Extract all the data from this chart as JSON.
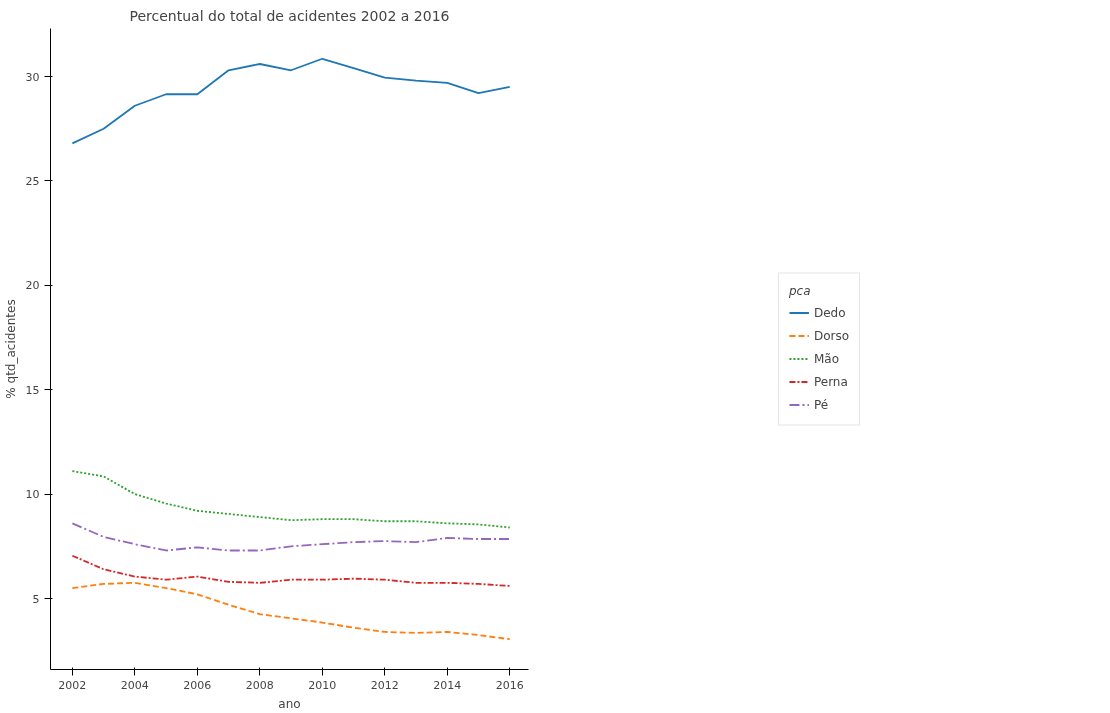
{
  "chart_data": {
    "type": "line",
    "title": "Percentual do total de acidentes 2002 a 2016",
    "xlabel": "ano",
    "ylabel": "% qtd_acidentes",
    "legend_title": "pca",
    "x": [
      2002,
      2003,
      2004,
      2005,
      2006,
      2007,
      2008,
      2009,
      2010,
      2011,
      2012,
      2013,
      2014,
      2015,
      2016
    ],
    "series": [
      {
        "name": "Dedo",
        "color": "#1f77b4",
        "line_style": "solid",
        "values": [
          26.8,
          27.5,
          28.6,
          29.15,
          29.15,
          30.3,
          30.6,
          30.3,
          30.85,
          30.4,
          29.95,
          29.8,
          29.7,
          29.2,
          29.5
        ]
      },
      {
        "name": "Dorso",
        "color": "#ff7f0e",
        "line_style": "dashed",
        "values": [
          5.5,
          5.7,
          5.75,
          5.5,
          5.2,
          4.7,
          4.25,
          4.05,
          3.85,
          3.6,
          3.4,
          3.35,
          3.4,
          3.25,
          3.05
        ]
      },
      {
        "name": "Mão",
        "color": "#2ca02c",
        "line_style": "dotted",
        "values": [
          11.1,
          10.85,
          10.0,
          9.55,
          9.2,
          9.05,
          8.9,
          8.75,
          8.8,
          8.8,
          8.7,
          8.7,
          8.6,
          8.55,
          8.4
        ]
      },
      {
        "name": "Perna",
        "color": "#d62728",
        "line_style": "dashdot",
        "values": [
          7.05,
          6.4,
          6.05,
          5.9,
          6.05,
          5.8,
          5.75,
          5.9,
          5.9,
          5.95,
          5.9,
          5.75,
          5.75,
          5.7,
          5.6
        ]
      },
      {
        "name": "Pé",
        "color": "#9467bd",
        "line_style": "longdashdot",
        "values": [
          8.6,
          7.95,
          7.6,
          7.3,
          7.45,
          7.3,
          7.3,
          7.5,
          7.6,
          7.7,
          7.75,
          7.7,
          7.9,
          7.85,
          7.85
        ]
      }
    ],
    "xlim": [
      2001.3,
      2016.6
    ],
    "ylim": [
      1.6,
      32.3
    ],
    "xticks": [
      2002,
      2004,
      2006,
      2008,
      2010,
      2012,
      2014,
      2016
    ],
    "yticks": [
      5,
      10,
      15,
      20,
      25,
      30
    ],
    "grid": false,
    "legend": "right"
  }
}
